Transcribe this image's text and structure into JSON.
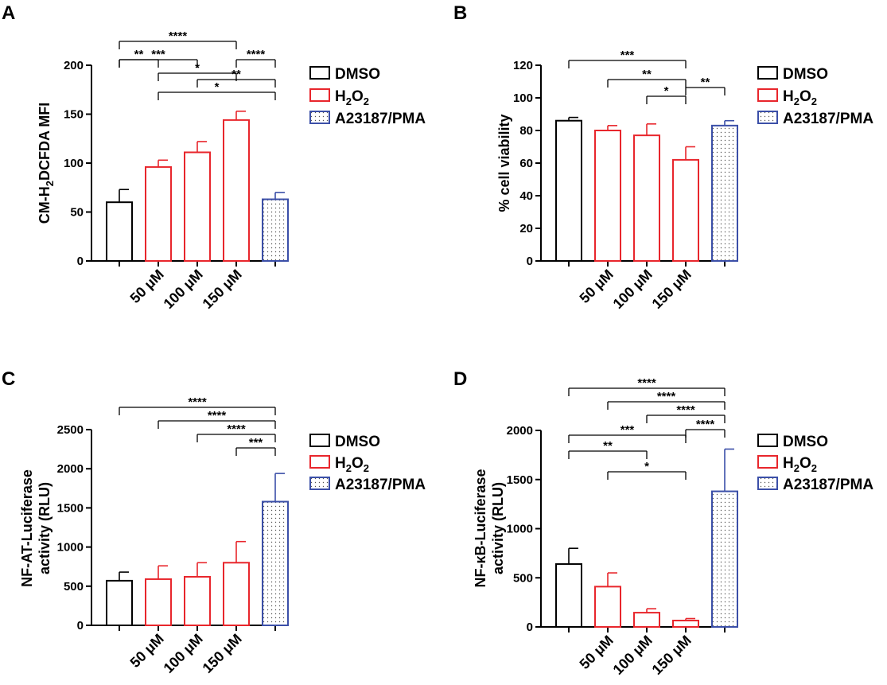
{
  "figure": {
    "panel_letters": [
      "A",
      "B",
      "C",
      "D"
    ]
  },
  "legend": {
    "dmso": "DMSO",
    "h2o2_main": "H",
    "h2o2_sub1": "2",
    "h2o2_mid": "O",
    "h2o2_sub2": "2",
    "a23187": "A23187/PMA"
  },
  "colors": {
    "dmso": "#000000",
    "h2o2": "#e8262c",
    "a23187": "#3b4fa8"
  },
  "chart_data": [
    {
      "panel": "A",
      "type": "bar",
      "title": "",
      "ylabel_parts": [
        "CM-H",
        "2",
        "DCFDA MFI"
      ],
      "ylim": [
        0,
        200
      ],
      "yticks": [
        0,
        50,
        100,
        150,
        200
      ],
      "categories": [
        "",
        "50 μM",
        "100 μM",
        "150 μM",
        ""
      ],
      "groups": [
        "DMSO",
        "H2O2",
        "H2O2",
        "H2O2",
        "A23187/PMA"
      ],
      "values": [
        60,
        96,
        111,
        144,
        63
      ],
      "errors": [
        13,
        7,
        11,
        9,
        7
      ],
      "significance": [
        {
          "from": 0,
          "to": 3,
          "label": "****",
          "row": 0
        },
        {
          "from": 0,
          "to": 2,
          "label": "***",
          "row": 1
        },
        {
          "from": 3,
          "to": 4,
          "label": "****",
          "row": 1
        },
        {
          "from": 0,
          "to": 1,
          "label": "**",
          "row": 2
        },
        {
          "from": 1,
          "to": 3,
          "label": "*",
          "row": 3
        },
        {
          "from": 2,
          "to": 4,
          "label": "**",
          "row": 4
        },
        {
          "from": 1,
          "to": 4,
          "label": "*",
          "row": 5
        }
      ]
    },
    {
      "panel": "B",
      "type": "bar",
      "title": "",
      "ylabel_parts": [
        "% cell viability"
      ],
      "ylim": [
        0,
        120
      ],
      "yticks": [
        0,
        20,
        40,
        60,
        80,
        100,
        120
      ],
      "categories": [
        "",
        "50 μM",
        "100 μM",
        "150 μM",
        ""
      ],
      "groups": [
        "DMSO",
        "H2O2",
        "H2O2",
        "H2O2",
        "A23187/PMA"
      ],
      "values": [
        86,
        80,
        77,
        62,
        83
      ],
      "errors": [
        2,
        3,
        7,
        8,
        3
      ],
      "significance": [
        {
          "from": 0,
          "to": 3,
          "label": "***",
          "row": 0
        },
        {
          "from": 1,
          "to": 3,
          "label": "**",
          "row": 1
        },
        {
          "from": 3,
          "to": 4,
          "label": "**",
          "row": 2
        },
        {
          "from": 2,
          "to": 3,
          "label": "*",
          "row": 3
        }
      ]
    },
    {
      "panel": "C",
      "type": "bar",
      "title": "",
      "ylabel_parts": [
        "NF-AT-Luciferase",
        "activity (RLU)"
      ],
      "ylim": [
        0,
        2500
      ],
      "yticks": [
        0,
        500,
        1000,
        1500,
        2000,
        2500
      ],
      "categories": [
        "",
        "50 μM",
        "100 μM",
        "150 μM",
        ""
      ],
      "groups": [
        "DMSO",
        "H2O2",
        "H2O2",
        "H2O2",
        "A23187/PMA"
      ],
      "values": [
        570,
        590,
        620,
        800,
        1580
      ],
      "errors": [
        110,
        170,
        180,
        270,
        360
      ],
      "significance": [
        {
          "from": 0,
          "to": 4,
          "label": "****",
          "row": 0
        },
        {
          "from": 1,
          "to": 4,
          "label": "****",
          "row": 1
        },
        {
          "from": 2,
          "to": 4,
          "label": "****",
          "row": 2
        },
        {
          "from": 3,
          "to": 4,
          "label": "***",
          "row": 3
        }
      ]
    },
    {
      "panel": "D",
      "type": "bar",
      "title": "",
      "ylabel_parts": [
        "NF-κB-Luciferase",
        "activity (RLU)"
      ],
      "ylim": [
        0,
        2000
      ],
      "yticks": [
        0,
        500,
        1000,
        1500,
        2000
      ],
      "categories": [
        "",
        "50 μM",
        "100 μM",
        "150 μM",
        ""
      ],
      "groups": [
        "DMSO",
        "H2O2",
        "H2O2",
        "H2O2",
        "A23187/PMA"
      ],
      "values": [
        640,
        410,
        145,
        65,
        1380
      ],
      "errors": [
        160,
        140,
        40,
        20,
        430
      ],
      "significance": [
        {
          "from": 0,
          "to": 4,
          "label": "****",
          "row": 0
        },
        {
          "from": 1,
          "to": 4,
          "label": "****",
          "row": 1
        },
        {
          "from": 2,
          "to": 4,
          "label": "****",
          "row": 2
        },
        {
          "from": 3,
          "to": 4,
          "label": "****",
          "row": 3
        },
        {
          "from": 0,
          "to": 3,
          "label": "***",
          "row": 4
        },
        {
          "from": 0,
          "to": 2,
          "label": "**",
          "row": 5
        },
        {
          "from": 1,
          "to": 3,
          "label": "*",
          "row": 6
        }
      ]
    }
  ]
}
